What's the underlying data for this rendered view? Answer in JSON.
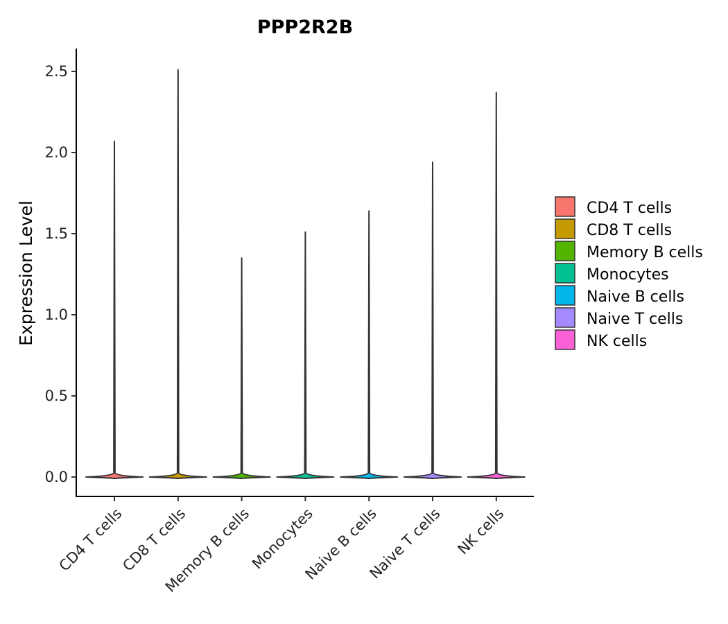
{
  "chart_data": {
    "type": "violin",
    "title": "PPP2R2B",
    "xlabel": "",
    "ylabel": "Expression Level",
    "categories": [
      "CD4 T cells",
      "CD8 T cells",
      "Memory B cells",
      "Monocytes",
      "Naive B cells",
      "Naive T cells",
      "NK cells"
    ],
    "max_values": [
      2.07,
      2.51,
      1.35,
      1.51,
      1.64,
      1.94,
      2.37
    ],
    "median_values": [
      0,
      0,
      0,
      0,
      0,
      0,
      0
    ],
    "colors": [
      "#F8766D",
      "#C49A00",
      "#53B400",
      "#00C094",
      "#00B6EB",
      "#A58AFF",
      "#FB61D7"
    ],
    "yticks": [
      0.0,
      0.5,
      1.0,
      1.5,
      2.0,
      2.5
    ],
    "ytick_labels": [
      "0.0",
      "0.5",
      "1.0",
      "1.5",
      "2.0",
      "2.5"
    ],
    "ylim": [
      -0.12,
      2.64
    ],
    "grid": false,
    "legend": {
      "position": "right",
      "entries": [
        "CD4 T cells",
        "CD8 T cells",
        "Memory B cells",
        "Monocytes",
        "Naive B cells",
        "Naive T cells",
        "NK cells"
      ]
    }
  }
}
